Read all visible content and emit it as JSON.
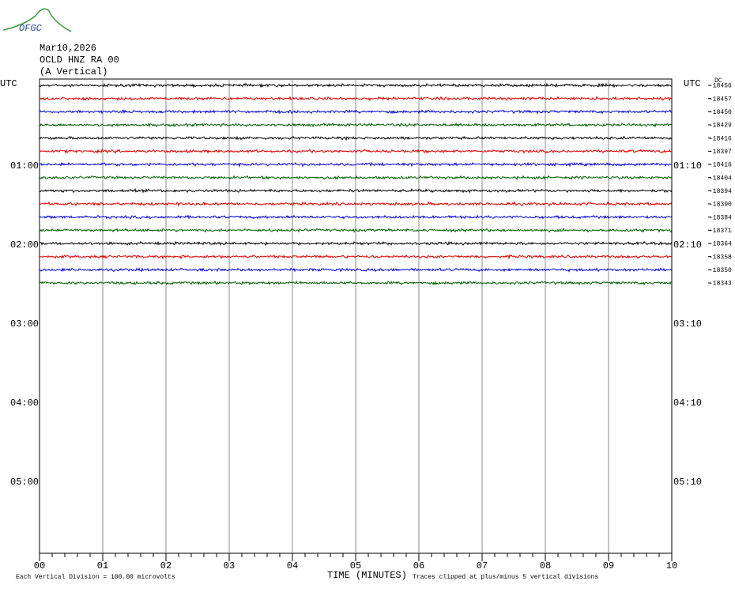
{
  "logo": "OFGC",
  "header": {
    "date": "Mar10,2026",
    "station": "OCLD HNZ RA 00",
    "component": "(A Vertical)"
  },
  "left_labels": [
    "UTC",
    "01:00",
    "02:00",
    "03:00",
    "04:00",
    "05:00"
  ],
  "right_labels": [
    "UTC",
    "01:10",
    "02:10",
    "03:10",
    "04:10",
    "05:10"
  ],
  "dc_label": "DC",
  "trace_colors": [
    "#000000",
    "#e00000",
    "#0000d0",
    "#006000"
  ],
  "traces": [
    -18456,
    -18457,
    -18450,
    -18429,
    -18416,
    -18397,
    -18416,
    -18404,
    -18394,
    -18390,
    -18384,
    -18371,
    -18364,
    -18358,
    -18350,
    -18343
  ],
  "x_ticks": [
    "00",
    "01",
    "02",
    "03",
    "04",
    "05",
    "06",
    "07",
    "08",
    "09",
    "10"
  ],
  "x_label": "TIME (MINUTES)",
  "footer": {
    "scale": "Each Vertical Division =  100.00 microvolts",
    "clip": "Traces clipped at plus/minus 5 vertical divisions"
  }
}
